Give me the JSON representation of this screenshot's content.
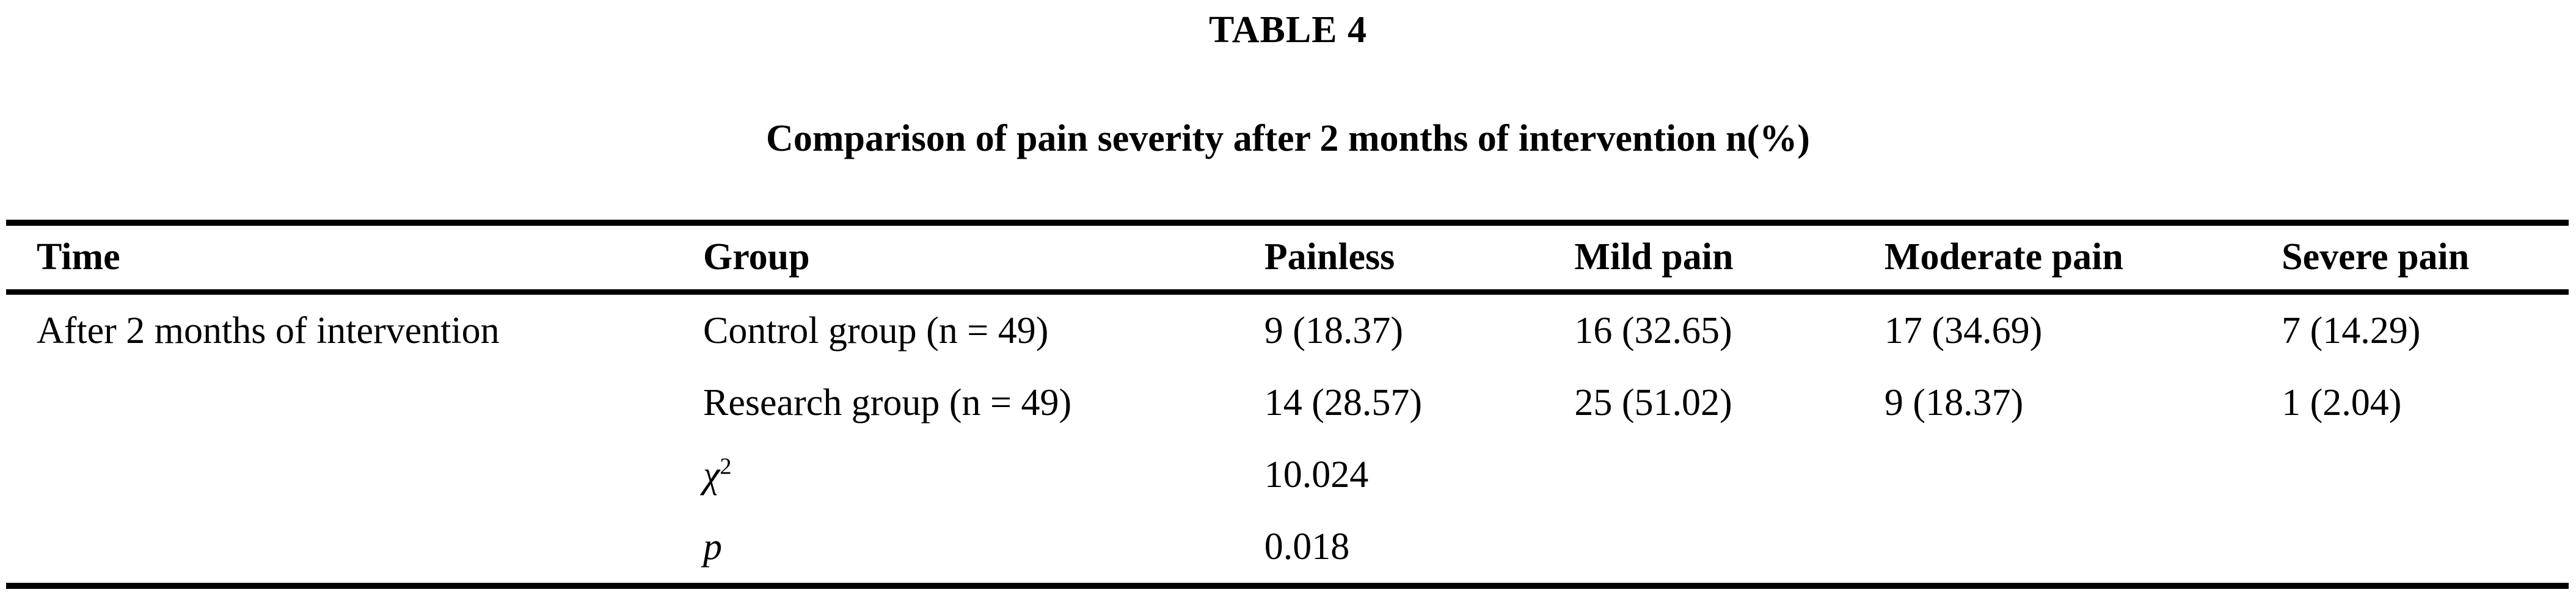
{
  "header": {
    "table_label": "TABLE 4",
    "caption": "Comparison of pain severity after 2 months of intervention n(%)"
  },
  "table": {
    "columns": [
      "Time",
      "Group",
      "Painless",
      "Mild pain",
      "Moderate pain",
      "Severe pain"
    ],
    "rows": [
      {
        "time": "After 2 months of intervention",
        "group": "Control group (n = 49)",
        "painless": "9 (18.37)",
        "mild_pain": "16 (32.65)",
        "moderate_pain": "17 (34.69)",
        "severe_pain": "7 (14.29)"
      },
      {
        "time": "",
        "group": "Research group (n = 49)",
        "painless": "14 (28.57)",
        "mild_pain": "25 (51.02)",
        "moderate_pain": "9 (18.37)",
        "severe_pain": "1 (2.04)"
      },
      {
        "time": "",
        "group_symbol": "χ",
        "group_superscript": "2",
        "painless": "10.024",
        "mild_pain": "",
        "moderate_pain": "",
        "severe_pain": ""
      },
      {
        "time": "",
        "group_symbol": "p",
        "group_superscript": "",
        "painless": "0.018",
        "mild_pain": "",
        "moderate_pain": "",
        "severe_pain": ""
      }
    ]
  },
  "colors": {
    "text": "#000000",
    "background": "#ffffff",
    "rule": "#000000"
  }
}
